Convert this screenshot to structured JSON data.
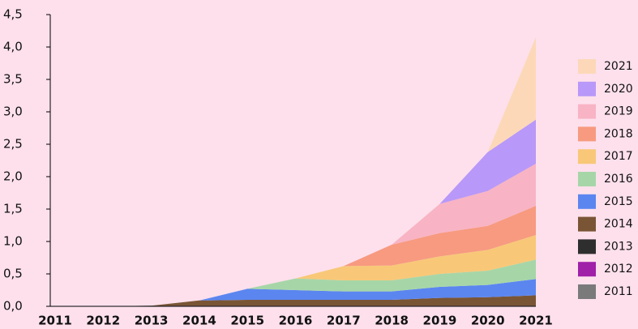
{
  "chart_data": {
    "type": "stacked_area",
    "categories": [
      "2011",
      "2012",
      "2013",
      "2014",
      "2015",
      "2016",
      "2017",
      "2018",
      "2019",
      "2020",
      "2021"
    ],
    "series": [
      {
        "name": "2011",
        "color": "#7a7a7a",
        "values": [
          0,
          0,
          0,
          0,
          0,
          0,
          0,
          0,
          0,
          0,
          0
        ]
      },
      {
        "name": "2012",
        "color": "#a020a8",
        "values": [
          0,
          0,
          0,
          0,
          0,
          0,
          0,
          0,
          0,
          0,
          0
        ]
      },
      {
        "name": "2013",
        "color": "#2e2e2e",
        "values": [
          0,
          0,
          0.01,
          0.01,
          0.01,
          0.01,
          0.01,
          0.01,
          0.01,
          0.01,
          0.01
        ]
      },
      {
        "name": "2014",
        "color": "#7a5535",
        "values": [
          0,
          0,
          0,
          0.08,
          0.09,
          0.09,
          0.09,
          0.09,
          0.12,
          0.13,
          0.16
        ]
      },
      {
        "name": "2015",
        "color": "#5b86f0",
        "values": [
          0,
          0,
          0,
          0,
          0.17,
          0.15,
          0.13,
          0.13,
          0.17,
          0.19,
          0.25
        ]
      },
      {
        "name": "2016",
        "color": "#a6d6a8",
        "values": [
          0,
          0,
          0,
          0,
          0,
          0.18,
          0.17,
          0.17,
          0.2,
          0.22,
          0.3
        ]
      },
      {
        "name": "2017",
        "color": "#f8c878",
        "values": [
          0,
          0,
          0,
          0,
          0,
          0,
          0.22,
          0.23,
          0.27,
          0.32,
          0.38
        ]
      },
      {
        "name": "2018",
        "color": "#f79a80",
        "values": [
          0,
          0,
          0,
          0,
          0,
          0,
          0,
          0.32,
          0.36,
          0.37,
          0.45
        ]
      },
      {
        "name": "2019",
        "color": "#f8b4c4",
        "values": [
          0,
          0,
          0,
          0,
          0,
          0,
          0,
          0,
          0.45,
          0.54,
          0.65
        ]
      },
      {
        "name": "2020",
        "color": "#b898f8",
        "values": [
          0,
          0,
          0,
          0,
          0,
          0,
          0,
          0,
          0,
          0.6,
          0.68
        ]
      },
      {
        "name": "2021",
        "color": "#fcd8b8",
        "values": [
          0,
          0,
          0,
          0,
          0,
          0,
          0,
          0,
          0,
          0,
          1.27
        ]
      }
    ],
    "ylim": [
      0,
      4.5
    ],
    "yticks": [
      {
        "value": 0,
        "label": "0,0"
      },
      {
        "value": 0.5,
        "label": "0,5"
      },
      {
        "value": 1,
        "label": "1,0"
      },
      {
        "value": 1.5,
        "label": "1,5"
      },
      {
        "value": 2,
        "label": "2,0"
      },
      {
        "value": 2.5,
        "label": "2,5"
      },
      {
        "value": 3,
        "label": "3,0"
      },
      {
        "value": 3.5,
        "label": "3,5"
      },
      {
        "value": 4,
        "label": "4,0"
      },
      {
        "value": 4.5,
        "label": "4,5"
      }
    ],
    "legend": "right"
  }
}
